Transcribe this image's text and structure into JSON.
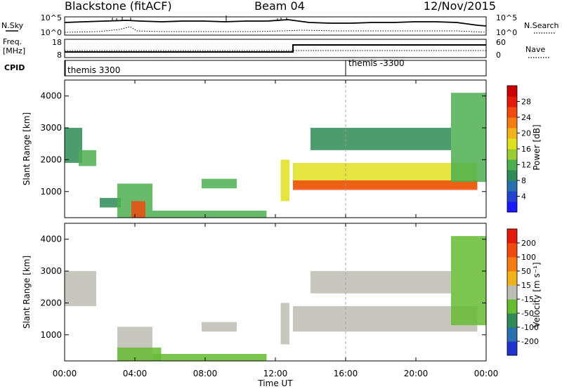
{
  "header": {
    "station": "Blackstone (fitACF)",
    "beam": "Beam 04",
    "date": "12/Nov/2015"
  },
  "sky_panel": {
    "left_label": "N.Sky",
    "right_label": "N.Search",
    "left_ticks": [
      "10^5",
      "10^0"
    ],
    "right_ticks": [
      "10^5",
      "10^0"
    ]
  },
  "freq_panel": {
    "left_label_1": "Freq.",
    "left_label_2": "[MHz]",
    "right_label": "Nave",
    "left_ticks": [
      "18",
      "8"
    ],
    "right_ticks": [
      "60",
      "0"
    ],
    "step_time_hours": 13.0
  },
  "cpid_panel": {
    "label": "CPID",
    "segments": [
      {
        "start_hour": 0,
        "text": "themis 3300"
      },
      {
        "start_hour": 16,
        "text": "themis -3300"
      }
    ]
  },
  "x_axis": {
    "label": "Time UT",
    "ticks": [
      "00:00",
      "04:00",
      "08:00",
      "12:00",
      "16:00",
      "20:00",
      "00:00"
    ],
    "range_hours": [
      0,
      24
    ]
  },
  "power_panel": {
    "ylabel": "Slant Range [km]",
    "yticks": [
      "4000",
      "3000",
      "2000",
      "1000"
    ],
    "colorbar_label": "Power [dB]",
    "colorbar_ticks": [
      "28",
      "24",
      "20",
      "16",
      "12",
      "8",
      "4"
    ],
    "colors": [
      "#1a1aff",
      "#2244cc",
      "#2a6fb0",
      "#2e8b57",
      "#4caf50",
      "#99cc33",
      "#e0e020",
      "#f2b21c",
      "#f57c12",
      "#f04a0e",
      "#e31b0b",
      "#cc0000"
    ]
  },
  "velocity_panel": {
    "ylabel": "Slant Range [km]",
    "yticks": [
      "4000",
      "3000",
      "2000",
      "1000"
    ],
    "colorbar_label": "Velocity [m s⁻¹]",
    "colorbar_ticks": [
      "200",
      "100",
      "50",
      "15",
      "-15",
      "-50",
      "-100",
      "-200"
    ],
    "colors": [
      "#2233cc",
      "#2a6fb0",
      "#2e8b57",
      "#66bb33",
      "#bdbdb5",
      "#f2b21c",
      "#f57c12",
      "#f04a0e",
      "#e31b0b"
    ]
  },
  "chart_data": {
    "type": "heatmap",
    "title": "Blackstone (fitACF)",
    "xlabel": "Time UT",
    "ylabel": "Slant Range [km]",
    "xlim": [
      0,
      24
    ],
    "ylim": [
      180,
      4500
    ],
    "grid": false,
    "series": [
      {
        "name": "Power [dB]",
        "zlim": [
          0,
          32
        ],
        "bands": [
          {
            "x": [
              0.0,
              1.0
            ],
            "y": [
              1900,
              3000
            ],
            "value": 8
          },
          {
            "x": [
              0.8,
              1.8
            ],
            "y": [
              1800,
              2300
            ],
            "value": 12
          },
          {
            "x": [
              2.0,
              3.2
            ],
            "y": [
              500,
              800
            ],
            "value": 8
          },
          {
            "x": [
              3.0,
              5.0
            ],
            "y": [
              180,
              1250
            ],
            "value": 12
          },
          {
            "x": [
              3.8,
              4.6
            ],
            "y": [
              180,
              700
            ],
            "value": 26
          },
          {
            "x": [
              5.0,
              11.5
            ],
            "y": [
              180,
              400
            ],
            "value": 12
          },
          {
            "x": [
              7.8,
              9.8
            ],
            "y": [
              1100,
              1400
            ],
            "value": 12
          },
          {
            "x": [
              12.3,
              12.8
            ],
            "y": [
              700,
              2000
            ],
            "value": 16
          },
          {
            "x": [
              13.0,
              23.5
            ],
            "y": [
              1100,
              1900
            ],
            "value": 16
          },
          {
            "x": [
              13.0,
              23.5
            ],
            "y": [
              1050,
              1350
            ],
            "value": 26
          },
          {
            "x": [
              14.0,
              22.0
            ],
            "y": [
              2300,
              3000
            ],
            "value": 8
          },
          {
            "x": [
              22.0,
              24.0
            ],
            "y": [
              1300,
              4100
            ],
            "value": 12
          }
        ]
      },
      {
        "name": "Velocity [m s⁻¹]",
        "zlim": [
          -200,
          200
        ],
        "bands": [
          {
            "x": [
              0.0,
              1.8
            ],
            "y": [
              1900,
              3000
            ],
            "value": 0
          },
          {
            "x": [
              3.0,
              5.0
            ],
            "y": [
              180,
              1250
            ],
            "value": 0
          },
          {
            "x": [
              3.0,
              5.5
            ],
            "y": [
              180,
              600
            ],
            "value": -30
          },
          {
            "x": [
              5.0,
              11.5
            ],
            "y": [
              180,
              400
            ],
            "value": -30
          },
          {
            "x": [
              7.8,
              9.8
            ],
            "y": [
              1100,
              1400
            ],
            "value": 0
          },
          {
            "x": [
              12.3,
              12.8
            ],
            "y": [
              700,
              2000
            ],
            "value": 20
          },
          {
            "x": [
              13.0,
              23.5
            ],
            "y": [
              1100,
              1900
            ],
            "value": 0
          },
          {
            "x": [
              14.0,
              22.0
            ],
            "y": [
              2300,
              3000
            ],
            "value": 0
          },
          {
            "x": [
              22.0,
              24.0
            ],
            "y": [
              1300,
              4100
            ],
            "value": -30
          }
        ]
      }
    ]
  }
}
